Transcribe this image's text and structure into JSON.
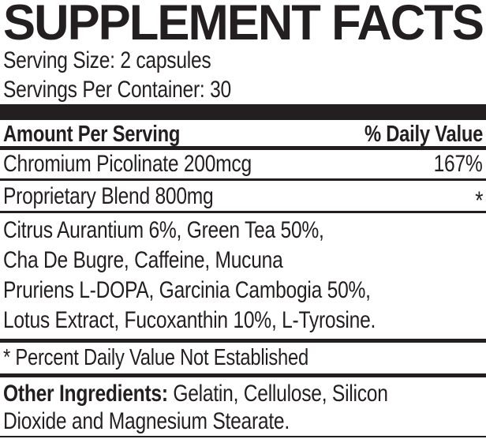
{
  "panel": {
    "title": "SUPPLEMENT FACTS",
    "serving_size": "Serving Size: 2 capsules",
    "servings_per_container": "Servings Per Container: 30",
    "columns": {
      "amount": "Amount Per Serving",
      "daily_value": "% Daily Value"
    },
    "rows": [
      {
        "name": "Chromium Picolinate 200mcg",
        "daily_value": "167%"
      },
      {
        "name": "Proprietary Blend 800mg",
        "daily_value": "*"
      }
    ],
    "blend_lines": [
      "Citrus Aurantium 6%, Green Tea 50%,",
      "Cha De Bugre, Caffeine, Mucuna",
      "Pruriens L-DOPA, Garcinia Cambogia 50%,",
      "Lotus Extract, Fucoxanthin 10%, L-Tyrosine."
    ],
    "footnote": "* Percent Daily Value Not Established",
    "other_ingredients": {
      "label": "Other Ingredients:",
      "line1": "Gelatin, Cellulose, Silicon",
      "line2": "Dioxide and Magnesium Stearate."
    },
    "colors": {
      "ink": "#231f20",
      "background": "#ffffff"
    }
  }
}
